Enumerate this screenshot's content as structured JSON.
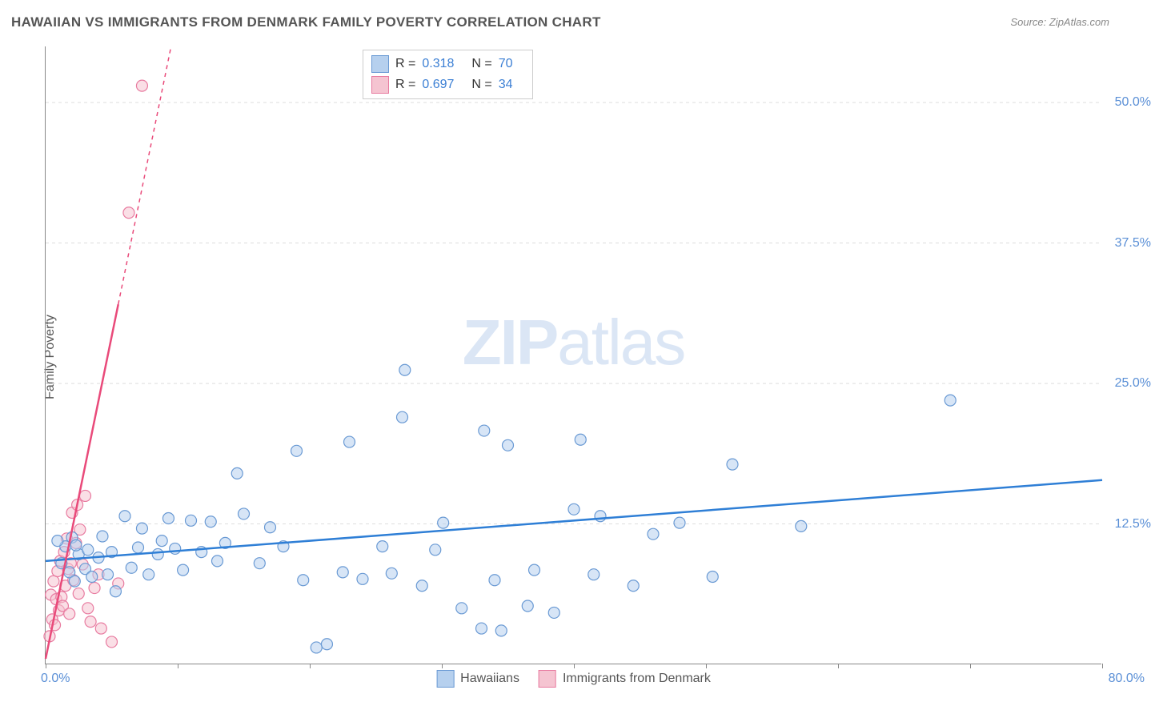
{
  "title": "HAWAIIAN VS IMMIGRANTS FROM DENMARK FAMILY POVERTY CORRELATION CHART",
  "source": "Source: ZipAtlas.com",
  "ylabel": "Family Poverty",
  "watermark": {
    "bold": "ZIP",
    "light": "atlas"
  },
  "xaxis": {
    "min": 0,
    "max": 80,
    "labels": {
      "left": "0.0%",
      "right": "80.0%"
    },
    "tick_positions": [
      0,
      10,
      20,
      30,
      40,
      50,
      60,
      70,
      80
    ]
  },
  "yaxis": {
    "min": 0,
    "max": 55,
    "ticks": [
      12.5,
      25.0,
      37.5,
      50.0
    ],
    "tick_labels": [
      "12.5%",
      "25.0%",
      "37.5%",
      "50.0%"
    ]
  },
  "series": {
    "hawaiians": {
      "label": "Hawaiians",
      "fill": "#b6d0ee",
      "stroke": "#6a9ad4",
      "line_color": "#2f7fd6",
      "line_width": 2.5,
      "marker_radius": 7,
      "marker_opacity": 0.55,
      "trend": {
        "x1": 0,
        "y1": 9.2,
        "x2": 80,
        "y2": 16.4
      },
      "r": "0.318",
      "n": "70",
      "points": [
        [
          1.5,
          10.5
        ],
        [
          1.8,
          8.2
        ],
        [
          2.0,
          11.3
        ],
        [
          2.2,
          7.4
        ],
        [
          2.5,
          9.8
        ],
        [
          2.3,
          10.6
        ],
        [
          1.2,
          9.0
        ],
        [
          0.9,
          11.0
        ],
        [
          3.0,
          8.5
        ],
        [
          3.2,
          10.2
        ],
        [
          3.5,
          7.8
        ],
        [
          4.0,
          9.5
        ],
        [
          4.3,
          11.4
        ],
        [
          4.7,
          8.0
        ],
        [
          5.0,
          10.0
        ],
        [
          5.3,
          6.5
        ],
        [
          6.0,
          13.2
        ],
        [
          6.5,
          8.6
        ],
        [
          7.0,
          10.4
        ],
        [
          7.3,
          12.1
        ],
        [
          7.8,
          8.0
        ],
        [
          8.5,
          9.8
        ],
        [
          8.8,
          11.0
        ],
        [
          9.3,
          13.0
        ],
        [
          9.8,
          10.3
        ],
        [
          10.4,
          8.4
        ],
        [
          11.0,
          12.8
        ],
        [
          11.8,
          10.0
        ],
        [
          12.5,
          12.7
        ],
        [
          13.0,
          9.2
        ],
        [
          13.6,
          10.8
        ],
        [
          14.5,
          17.0
        ],
        [
          15.0,
          13.4
        ],
        [
          16.2,
          9.0
        ],
        [
          17.0,
          12.2
        ],
        [
          18.0,
          10.5
        ],
        [
          19.0,
          19.0
        ],
        [
          19.5,
          7.5
        ],
        [
          20.5,
          1.5
        ],
        [
          21.3,
          1.8
        ],
        [
          22.5,
          8.2
        ],
        [
          23.0,
          19.8
        ],
        [
          24.0,
          7.6
        ],
        [
          25.5,
          10.5
        ],
        [
          26.2,
          8.1
        ],
        [
          27.0,
          22.0
        ],
        [
          27.2,
          26.2
        ],
        [
          28.5,
          7.0
        ],
        [
          29.5,
          10.2
        ],
        [
          30.1,
          12.6
        ],
        [
          31.5,
          5.0
        ],
        [
          33.0,
          3.2
        ],
        [
          33.2,
          20.8
        ],
        [
          34.0,
          7.5
        ],
        [
          34.5,
          3.0
        ],
        [
          35.0,
          19.5
        ],
        [
          36.5,
          5.2
        ],
        [
          37.0,
          8.4
        ],
        [
          38.5,
          4.6
        ],
        [
          40.0,
          13.8
        ],
        [
          40.5,
          20.0
        ],
        [
          41.5,
          8.0
        ],
        [
          42.0,
          13.2
        ],
        [
          44.5,
          7.0
        ],
        [
          46.0,
          11.6
        ],
        [
          48.0,
          12.6
        ],
        [
          50.5,
          7.8
        ],
        [
          52.0,
          17.8
        ],
        [
          57.2,
          12.3
        ],
        [
          68.5,
          23.5
        ]
      ]
    },
    "denmark": {
      "label": "Immigrants from Denmark",
      "fill": "#f5c4d1",
      "stroke": "#e87ba0",
      "line_color": "#e94a7a",
      "line_width": 2.5,
      "marker_radius": 7,
      "marker_opacity": 0.55,
      "trend": {
        "x1": 0,
        "y1": 0.5,
        "x2": 9.5,
        "y2": 55
      },
      "trend_dash_after_x": 5.5,
      "r": "0.697",
      "n": "34",
      "points": [
        [
          0.3,
          2.5
        ],
        [
          0.5,
          4.0
        ],
        [
          0.4,
          6.2
        ],
        [
          0.7,
          3.5
        ],
        [
          0.8,
          5.8
        ],
        [
          0.6,
          7.4
        ],
        [
          1.0,
          4.8
        ],
        [
          0.9,
          8.3
        ],
        [
          1.2,
          6.0
        ],
        [
          1.1,
          9.2
        ],
        [
          1.3,
          5.2
        ],
        [
          1.5,
          7.0
        ],
        [
          1.4,
          10.0
        ],
        [
          1.7,
          8.5
        ],
        [
          1.6,
          11.2
        ],
        [
          1.9,
          9.0
        ],
        [
          2.0,
          13.5
        ],
        [
          2.1,
          7.5
        ],
        [
          1.8,
          4.5
        ],
        [
          2.3,
          10.8
        ],
        [
          2.4,
          14.2
        ],
        [
          2.5,
          6.3
        ],
        [
          2.8,
          8.9
        ],
        [
          2.6,
          12.0
        ],
        [
          3.0,
          15.0
        ],
        [
          3.2,
          5.0
        ],
        [
          3.4,
          3.8
        ],
        [
          3.7,
          6.8
        ],
        [
          4.0,
          8.0
        ],
        [
          4.2,
          3.2
        ],
        [
          5.0,
          2.0
        ],
        [
          5.5,
          7.2
        ],
        [
          6.3,
          40.2
        ],
        [
          7.3,
          51.5
        ]
      ]
    }
  },
  "stats_box": {
    "rows": [
      {
        "swatch_fill": "#b6d0ee",
        "swatch_stroke": "#6a9ad4",
        "r_label": "R =",
        "r_val": "0.318",
        "n_label": "N =",
        "n_val": "70"
      },
      {
        "swatch_fill": "#f5c4d1",
        "swatch_stroke": "#e87ba0",
        "r_label": "R =",
        "r_val": "0.697",
        "n_label": "N =",
        "n_val": "34"
      }
    ]
  },
  "legend": [
    {
      "swatch_fill": "#b6d0ee",
      "swatch_stroke": "#6a9ad4",
      "label": "Hawaiians"
    },
    {
      "swatch_fill": "#f5c4d1",
      "swatch_stroke": "#e87ba0",
      "label": "Immigrants from Denmark"
    }
  ],
  "colors": {
    "background": "#ffffff",
    "grid": "#dddddd",
    "axis": "#888888",
    "title_text": "#555555",
    "tick_text": "#5a8fd6"
  }
}
